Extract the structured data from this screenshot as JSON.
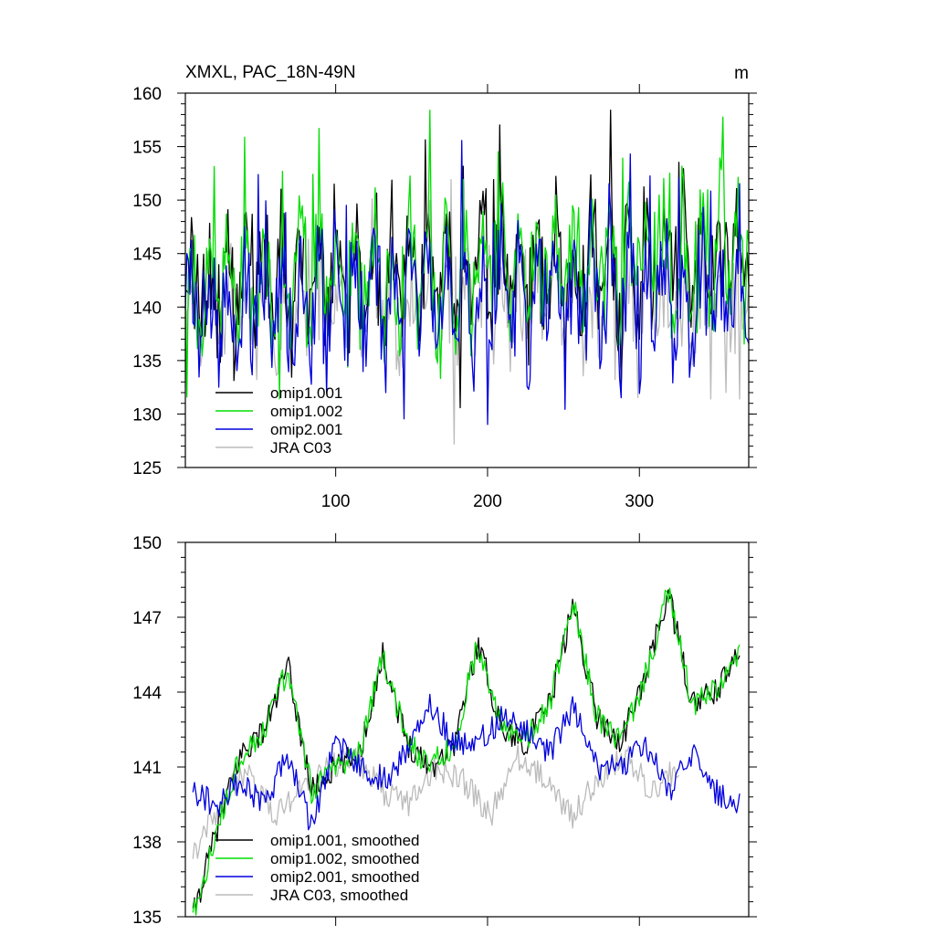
{
  "chart_data": [
    {
      "type": "line",
      "title": "XMXL, PAC_18N-49N",
      "units": "m",
      "xlim": [
        1,
        372
      ],
      "ylim": [
        125,
        160
      ],
      "xticks": [
        100,
        200,
        300
      ],
      "xtick_labels": [
        "100",
        "200",
        "300"
      ],
      "yticks": [
        125,
        130,
        135,
        140,
        145,
        150,
        155,
        160
      ],
      "ytick_labels": [
        "125",
        "130",
        "135",
        "140",
        "145",
        "150",
        "155",
        "160"
      ],
      "legend_position": "bottom-left",
      "series": [
        {
          "name": "omip1.001",
          "color": "#000000",
          "description": "monthly series, nearly identical to omip1.002",
          "trend": [
            [
              1,
              141.0
            ],
            [
              12,
              141.0
            ],
            [
              24,
              142.2
            ],
            [
              60,
              142.6
            ],
            [
              120,
              143.2
            ],
            [
              180,
              143.6
            ],
            [
              240,
              143.8
            ],
            [
              300,
              144.2
            ],
            [
              372,
              145.0
            ]
          ],
          "spread": 3.6,
          "y_values_approx": [
            141.5,
            140.0,
            139.0,
            142.5,
            144.0,
            141.0
          ]
        },
        {
          "name": "omip1.002",
          "color": "#00dd00",
          "description": "monthly mixed layer depth, ranges ~128 to ~158",
          "trend": [
            [
              1,
              141.0
            ],
            [
              12,
              141.0
            ],
            [
              24,
              142.2
            ],
            [
              60,
              142.6
            ],
            [
              120,
              143.2
            ],
            [
              180,
              143.6
            ],
            [
              240,
              143.8
            ],
            [
              300,
              144.2
            ],
            [
              372,
              145.0
            ]
          ],
          "spread": 3.6,
          "y_values_approx": [
            141.5,
            140.0,
            139.0,
            142.5,
            144.0,
            141.0
          ]
        },
        {
          "name": "omip2.001",
          "color": "#0000dd",
          "description": "monthly mixed layer depth, ranges ~128 to ~156",
          "trend": [
            [
              1,
              140.3
            ],
            [
              24,
              140.5
            ],
            [
              60,
              140.8
            ],
            [
              120,
              141.0
            ],
            [
              180,
              141.2
            ],
            [
              240,
              141.0
            ],
            [
              300,
              141.0
            ],
            [
              372,
              140.6
            ]
          ],
          "spread": 3.6,
          "y_values_approx": [
            140.0,
            139.5,
            141.0,
            141.5,
            140.5,
            141.0
          ]
        },
        {
          "name": "JRA C03",
          "color": "#bbbbbb",
          "description": "monthly mixed layer depth, ranges ~127 to ~151",
          "trend": [
            [
              1,
              139.5
            ],
            [
              24,
              139.8
            ],
            [
              60,
              140.0
            ],
            [
              120,
              140.5
            ],
            [
              180,
              140.5
            ],
            [
              240,
              140.2
            ],
            [
              300,
              140.4
            ],
            [
              372,
              140.4
            ]
          ],
          "spread": 2.9,
          "y_values_approx": [
            138.5,
            139.5,
            140.0,
            141.0,
            140.0,
            140.5
          ]
        }
      ]
    },
    {
      "type": "line",
      "title": "",
      "units": "",
      "xlim": [
        1,
        372
      ],
      "ylim": [
        135,
        150
      ],
      "xticks": [
        100,
        200,
        300
      ],
      "xtick_labels": [],
      "yticks": [
        135,
        138,
        141,
        144,
        147,
        150
      ],
      "ytick_labels": [
        "135",
        "138",
        "141",
        "144",
        "147",
        "150"
      ],
      "legend_position": "bottom-left",
      "series": [
        {
          "name": "omip1.001, smoothed",
          "color": "#000000",
          "y_values_approx": [
            135.0,
            138.5,
            141.5,
            142.5,
            145.0,
            140.0,
            141.0,
            141.5,
            145.5,
            142.0,
            141.0,
            142.0,
            146.0,
            142.5,
            142.0,
            143.5,
            147.5,
            143.0,
            142.0,
            144.5,
            148.0,
            143.5,
            144.0,
            145.5
          ]
        },
        {
          "name": "omip1.002, smoothed",
          "color": "#00dd00",
          "y_values_approx": [
            135.0,
            138.5,
            141.5,
            142.5,
            145.0,
            140.0,
            141.0,
            141.5,
            145.5,
            142.0,
            141.0,
            142.0,
            146.0,
            142.5,
            142.0,
            143.5,
            147.5,
            143.0,
            142.0,
            144.5,
            148.0,
            143.5,
            144.0,
            145.5
          ]
        },
        {
          "name": "omip2.001, smoothed",
          "color": "#0000dd",
          "y_values_approx": [
            140.0,
            139.5,
            140.5,
            139.5,
            141.5,
            138.5,
            142.0,
            141.0,
            140.5,
            141.5,
            143.5,
            142.0,
            142.0,
            143.0,
            142.5,
            141.5,
            143.5,
            141.0,
            141.0,
            142.0,
            140.0,
            141.5,
            140.0,
            139.5
          ]
        },
        {
          "name": "JRA C03, smoothed",
          "color": "#bbbbbb",
          "y_values_approx": [
            137.5,
            139.5,
            141.0,
            139.0,
            140.0,
            141.0,
            141.5,
            140.0,
            139.5,
            141.0,
            140.5,
            139.0,
            141.5,
            140.5,
            139.0,
            140.5,
            141.5,
            140.0,
            141.0
          ]
        }
      ]
    }
  ]
}
